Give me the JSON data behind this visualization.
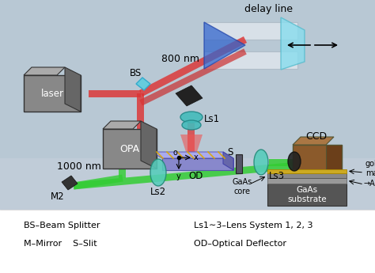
{
  "fig_width": 4.74,
  "fig_height": 3.45,
  "dpi": 100,
  "bg_top": "#b8c8d4",
  "bg_bottom": "#c8d4dc",
  "legend_bg": "#ffffff",
  "legend_lines": [
    [
      "BS–Beam Splitter",
      "Ls1∼3–Lens System 1, 2, 3"
    ],
    [
      "M–Mirror    S–Slit",
      "OD–Optical Deflector"
    ]
  ],
  "legend_fontsize": 8.0,
  "red_beam": "#dd3333",
  "red_beam_dark": "#cc2222",
  "green_beam": "#33cc33",
  "beam_alpha": 0.82
}
